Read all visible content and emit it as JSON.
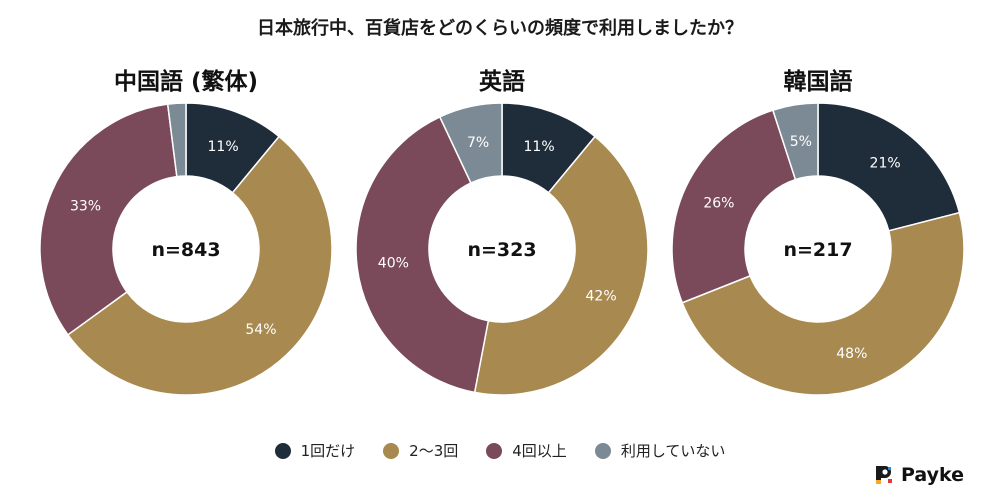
{
  "title": "日本旅行中、百貨店をどのくらいの頻度で利用しましたか？",
  "brand": "Payke",
  "chart_data": {
    "type": "pie",
    "legend_position": "bottom",
    "categories": [
      "1回だけ",
      "2〜3回",
      "4回以上",
      "利用していない"
    ],
    "colors": [
      "#1f2d3a",
      "#a8894f",
      "#7a4a5a",
      "#7c8a96"
    ],
    "charts": [
      {
        "title": "中国語 (繁体)",
        "center_label": "n=843",
        "values": [
          11,
          54,
          33,
          2
        ],
        "labels": [
          "11%",
          "54%",
          "33%",
          ""
        ]
      },
      {
        "title": "英語",
        "center_label": "n=323",
        "values": [
          11,
          42,
          40,
          7
        ],
        "labels": [
          "11%",
          "42%",
          "40%",
          "7%"
        ]
      },
      {
        "title": "韓国語",
        "center_label": "n=217",
        "values": [
          21,
          48,
          26,
          5
        ],
        "labels": [
          "21%",
          "48%",
          "26%",
          "5%"
        ]
      }
    ]
  }
}
